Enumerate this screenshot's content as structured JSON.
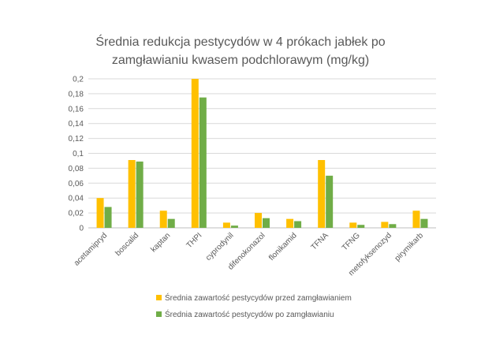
{
  "chart_data": {
    "type": "bar",
    "title_lines": [
      "Średnia redukcja pestycydów w 4 prókach jabłek po",
      "zamgławianiu kwasem podchlorawym (mg/kg)"
    ],
    "categories": [
      "acetamipryd",
      "boscalid",
      "kaptan",
      "THPI",
      "cyprodynil",
      "difenokonazol",
      "flonikamid",
      "TFNA",
      "TFNG",
      "metofyksenozyd",
      "pirymikarb"
    ],
    "series": [
      {
        "name": "Średnia zawartość pestycydów przed zamgławianiem",
        "color": "#FFC000",
        "values": [
          0.04,
          0.091,
          0.023,
          0.2,
          0.007,
          0.02,
          0.012,
          0.091,
          0.007,
          0.008,
          0.023
        ]
      },
      {
        "name": "Średnia zawartość pestycydów po zamgławianiu",
        "color": "#70AD47",
        "values": [
          0.028,
          0.089,
          0.012,
          0.175,
          0.003,
          0.013,
          0.009,
          0.07,
          0.004,
          0.005,
          0.012
        ]
      }
    ],
    "y_ticks": [
      "0",
      "0,02",
      "0,04",
      "0,06",
      "0,08",
      "0,1",
      "0,12",
      "0,14",
      "0,16",
      "0,18",
      "0,2"
    ],
    "ylim": [
      0,
      0.2
    ],
    "grid": true,
    "legend_position": "bottom"
  }
}
